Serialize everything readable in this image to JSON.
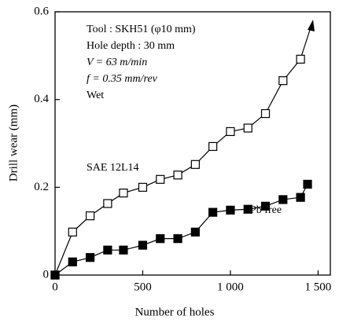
{
  "chart_data": {
    "type": "line",
    "xlabel": "Number of holes",
    "ylabel": "Drill wear (mm)",
    "annotations": [
      "Tool : SKH51 (φ10 mm)",
      "Hole depth : 30 mm",
      "V = 63 m/min",
      "f = 0.35 mm/rev",
      "Wet"
    ],
    "series": [
      {
        "name": "SAE 12L14",
        "color": "#000000",
        "marker": "square-open",
        "x": [
          0,
          100,
          200,
          300,
          390,
          500,
          600,
          700,
          800,
          900,
          1000,
          1100,
          1200,
          1300,
          1400
        ],
        "values": [
          0,
          0.098,
          0.135,
          0.163,
          0.187,
          0.2,
          0.218,
          0.228,
          0.252,
          0.293,
          0.327,
          0.335,
          0.368,
          0.443,
          0.492
        ]
      },
      {
        "name": "Pb free",
        "color": "#000000",
        "marker": "square-filled",
        "x": [
          0,
          100,
          200,
          300,
          390,
          500,
          600,
          700,
          800,
          900,
          1000,
          1100,
          1200,
          1300,
          1400,
          1440
        ],
        "values": [
          0,
          0.03,
          0.04,
          0.057,
          0.057,
          0.068,
          0.083,
          0.083,
          0.098,
          0.143,
          0.148,
          0.15,
          0.157,
          0.172,
          0.177,
          0.207
        ]
      }
    ],
    "xlim": [
      0,
      1570
    ],
    "ylim": [
      0,
      0.6
    ],
    "xticks": [
      0,
      500,
      {
        "value": 1000,
        "label": "1 000"
      },
      {
        "value": 1500,
        "label": "1 500"
      }
    ],
    "yticks": [
      0,
      0.2,
      0.4,
      0.6
    ]
  }
}
